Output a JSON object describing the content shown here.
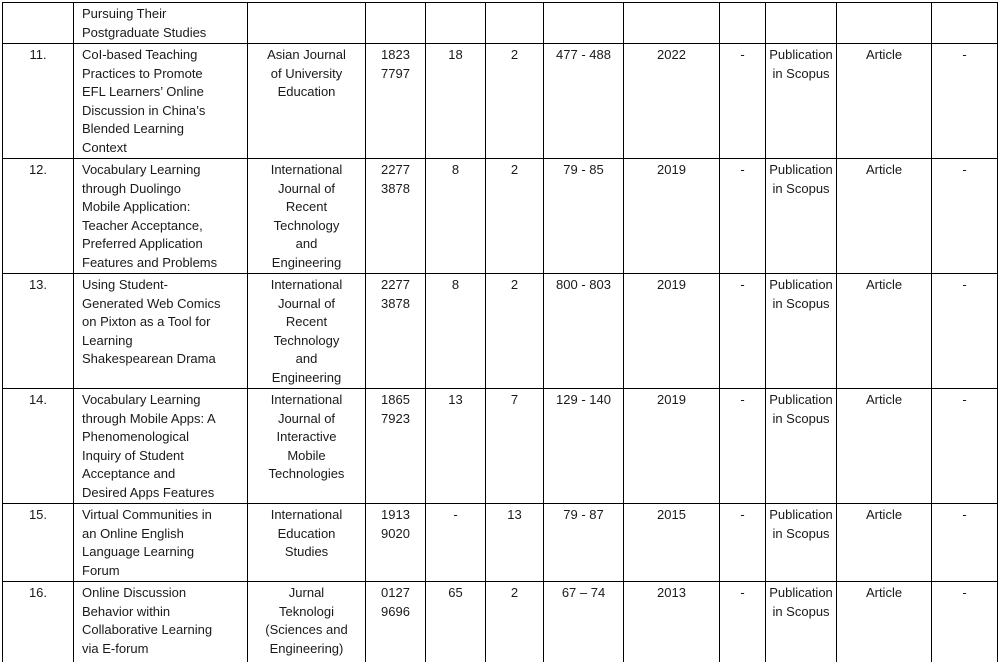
{
  "table": {
    "rows": [
      {
        "no": "",
        "title": "Pursuing Their\nPostgraduate Studies",
        "journal": "",
        "issn": "",
        "volume": "",
        "issue": "",
        "pages": "",
        "year": "",
        "col9": "",
        "status": "",
        "doc_type": "",
        "col12": ""
      },
      {
        "no": "11.",
        "title": "CoI-based Teaching\nPractices to Promote\nEFL Learners’ Online\nDiscussion in China’s\nBlended Learning\nContext",
        "journal": "Asian Journal\nof University\nEducation",
        "issn": "1823\n7797",
        "volume": "18",
        "issue": "2",
        "pages": "477 - 488",
        "year": "2022",
        "col9": "-",
        "status": "Publication\nin Scopus",
        "doc_type": "Article",
        "col12": "-"
      },
      {
        "no": "12.",
        "title": "Vocabulary Learning\nthrough Duolingo\nMobile Application:\nTeacher Acceptance,\nPreferred Application\nFeatures and Problems",
        "journal": "International\nJournal of\nRecent\nTechnology\nand\nEngineering",
        "issn": "2277\n3878",
        "volume": "8",
        "issue": "2",
        "pages": "79 - 85",
        "year": "2019",
        "col9": "-",
        "status": "Publication\nin Scopus",
        "doc_type": "Article",
        "col12": "-"
      },
      {
        "no": "13.",
        "title": "Using Student-\nGenerated Web Comics\non Pixton as a Tool for\nLearning\nShakespearean Drama",
        "journal": "International\nJournal of\nRecent\nTechnology\nand\nEngineering",
        "issn": "2277\n3878",
        "volume": "8",
        "issue": "2",
        "pages": "800 - 803",
        "year": "2019",
        "col9": "-",
        "status": "Publication\nin Scopus",
        "doc_type": "Article",
        "col12": "-"
      },
      {
        "no": "14.",
        "title": "Vocabulary Learning\nthrough Mobile Apps: A\nPhenomenological\nInquiry of Student\nAcceptance and\nDesired Apps Features",
        "journal": "International\nJournal of\nInteractive\nMobile\nTechnologies",
        "issn": "1865\n7923",
        "volume": "13",
        "issue": "7",
        "pages": "129 - 140",
        "year": "2019",
        "col9": "-",
        "status": "Publication\nin Scopus",
        "doc_type": "Article",
        "col12": "-"
      },
      {
        "no": "15.",
        "title": "Virtual Communities in\nan Online English\nLanguage Learning\nForum",
        "journal": "International\nEducation\nStudies",
        "issn": "1913\n9020",
        "volume": "-",
        "issue": "13",
        "pages": "79 - 87",
        "year": "2015",
        "col9": "-",
        "status": "Publication\nin Scopus",
        "doc_type": "Article",
        "col12": "-"
      },
      {
        "no": "16.",
        "title": "Online Discussion\nBehavior within\nCollaborative Learning\nvia E-forum",
        "journal": "Jurnal\nTeknologi\n(Sciences and\nEngineering)",
        "issn": "0127\n9696",
        "volume": "65",
        "issue": "2",
        "pages": "67 – 74",
        "year": "2013",
        "col9": "-",
        "status": "Publication\nin Scopus",
        "doc_type": "Article",
        "col12": "-"
      }
    ]
  }
}
